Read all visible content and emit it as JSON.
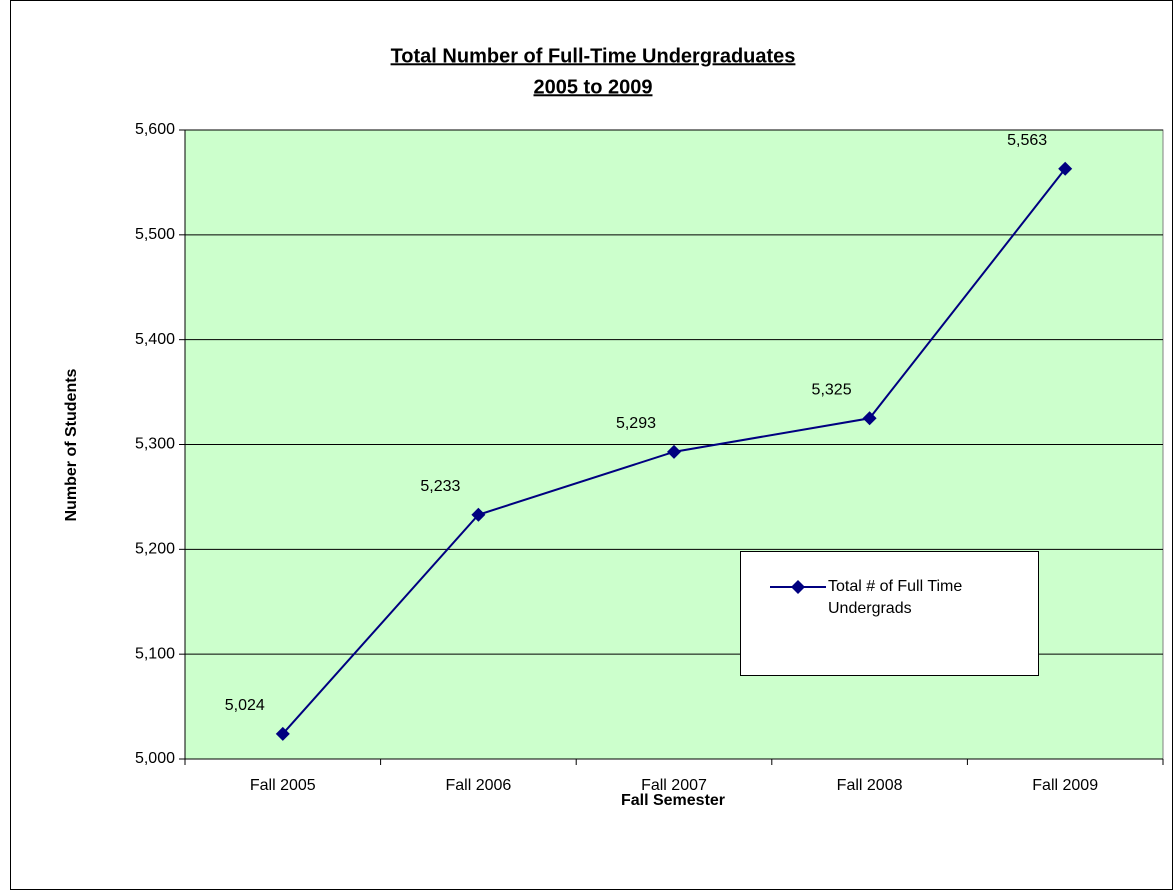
{
  "chart_data": {
    "type": "line",
    "title": "Total Number of Full-Time Undergraduates",
    "subtitle": "2005 to 2009",
    "x_label": "Fall Semester",
    "y_label": "Number of Students",
    "categories": [
      "Fall 2005",
      "Fall 2006",
      "Fall 2007",
      "Fall 2008",
      "Fall 2009"
    ],
    "series": [
      {
        "name": "Total # of Full Time Undergrads",
        "color": "#000080",
        "values": [
          5024,
          5233,
          5293,
          5325,
          5563
        ],
        "value_labels": [
          "5,024",
          "5,233",
          "5,293",
          "5,325",
          "5,563"
        ]
      }
    ],
    "ylim": [
      5000,
      5600
    ],
    "yticks": [
      {
        "value": 5000,
        "label": "5,000"
      },
      {
        "value": 5100,
        "label": "5,100"
      },
      {
        "value": 5200,
        "label": "5,200"
      },
      {
        "value": 5300,
        "label": "5,300"
      },
      {
        "value": 5400,
        "label": "5,400"
      },
      {
        "value": 5500,
        "label": "5,500"
      },
      {
        "value": 5600,
        "label": "5,600"
      }
    ],
    "grid": true,
    "plot_background": "#ccffcc",
    "legend": "right"
  }
}
